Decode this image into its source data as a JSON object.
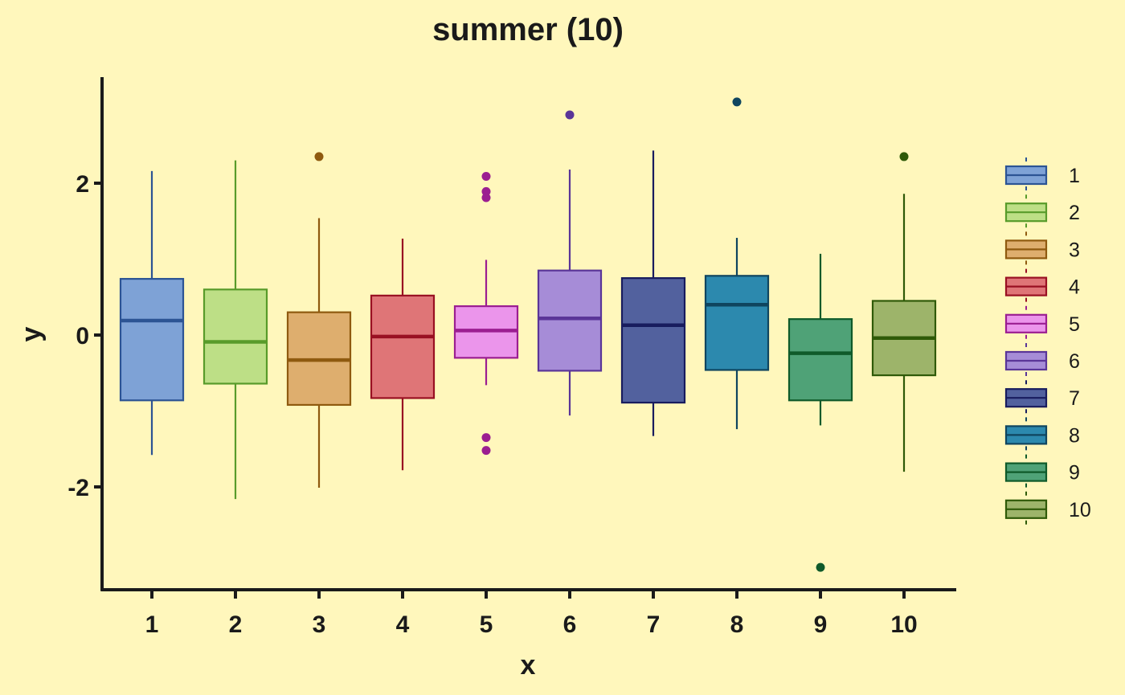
{
  "chart_data": {
    "type": "boxplot",
    "title": "summer (10)",
    "xlabel": "x",
    "ylabel": "y",
    "categories": [
      "1",
      "2",
      "3",
      "4",
      "5",
      "6",
      "7",
      "8",
      "9",
      "10"
    ],
    "ylim": [
      -3.3,
      3.4
    ],
    "yticks": [
      -2,
      0,
      2
    ],
    "ytick_labels": [
      "-2",
      "0",
      "2"
    ],
    "grid": false,
    "legend_position": "right",
    "legend_entries": [
      "1",
      "2",
      "3",
      "4",
      "5",
      "6",
      "7",
      "8",
      "9",
      "10"
    ],
    "colors": {
      "background": "#FFF7BC",
      "axis": "#1a1a1a",
      "fills": [
        "#7EA2D6",
        "#BDDF86",
        "#DEAE6E",
        "#DF7577",
        "#EB95EB",
        "#A68CD7",
        "#52619E",
        "#2C89AE",
        "#4FA277",
        "#9DB46A"
      ],
      "strokes": [
        "#2C5494",
        "#589B2A",
        "#8F5A0F",
        "#991022",
        "#9B1E91",
        "#5A3598",
        "#181C5E",
        "#0F455F",
        "#0F5A2A",
        "#2F5A08"
      ]
    },
    "series": [
      {
        "name": "1",
        "whisker_low": -1.58,
        "q1": -0.86,
        "median": 0.19,
        "q3": 0.74,
        "whisker_high": 2.16,
        "outliers": []
      },
      {
        "name": "2",
        "whisker_low": -2.16,
        "q1": -0.64,
        "median": -0.09,
        "q3": 0.6,
        "whisker_high": 2.3,
        "outliers": []
      },
      {
        "name": "3",
        "whisker_low": -2.01,
        "q1": -0.92,
        "median": -0.33,
        "q3": 0.3,
        "whisker_high": 1.54,
        "outliers": [
          2.35
        ]
      },
      {
        "name": "4",
        "whisker_low": -1.78,
        "q1": -0.83,
        "median": -0.02,
        "q3": 0.52,
        "whisker_high": 1.27,
        "outliers": []
      },
      {
        "name": "5",
        "whisker_low": -0.66,
        "q1": -0.3,
        "median": 0.06,
        "q3": 0.38,
        "whisker_high": 0.99,
        "outliers": [
          2.09,
          1.89,
          1.81,
          -1.35,
          -1.52
        ]
      },
      {
        "name": "6",
        "whisker_low": -1.06,
        "q1": -0.47,
        "median": 0.22,
        "q3": 0.85,
        "whisker_high": 2.18,
        "outliers": [
          2.9
        ]
      },
      {
        "name": "7",
        "whisker_low": -1.33,
        "q1": -0.89,
        "median": 0.13,
        "q3": 0.75,
        "whisker_high": 2.43,
        "outliers": []
      },
      {
        "name": "8",
        "whisker_low": -1.24,
        "q1": -0.46,
        "median": 0.4,
        "q3": 0.78,
        "whisker_high": 1.28,
        "outliers": [
          3.07
        ]
      },
      {
        "name": "9",
        "whisker_low": -1.19,
        "q1": -0.86,
        "median": -0.24,
        "q3": 0.21,
        "whisker_high": 1.07,
        "outliers": [
          -3.06
        ]
      },
      {
        "name": "10",
        "whisker_low": -1.8,
        "q1": -0.53,
        "median": -0.04,
        "q3": 0.45,
        "whisker_high": 1.86,
        "outliers": [
          2.35
        ]
      }
    ]
  }
}
